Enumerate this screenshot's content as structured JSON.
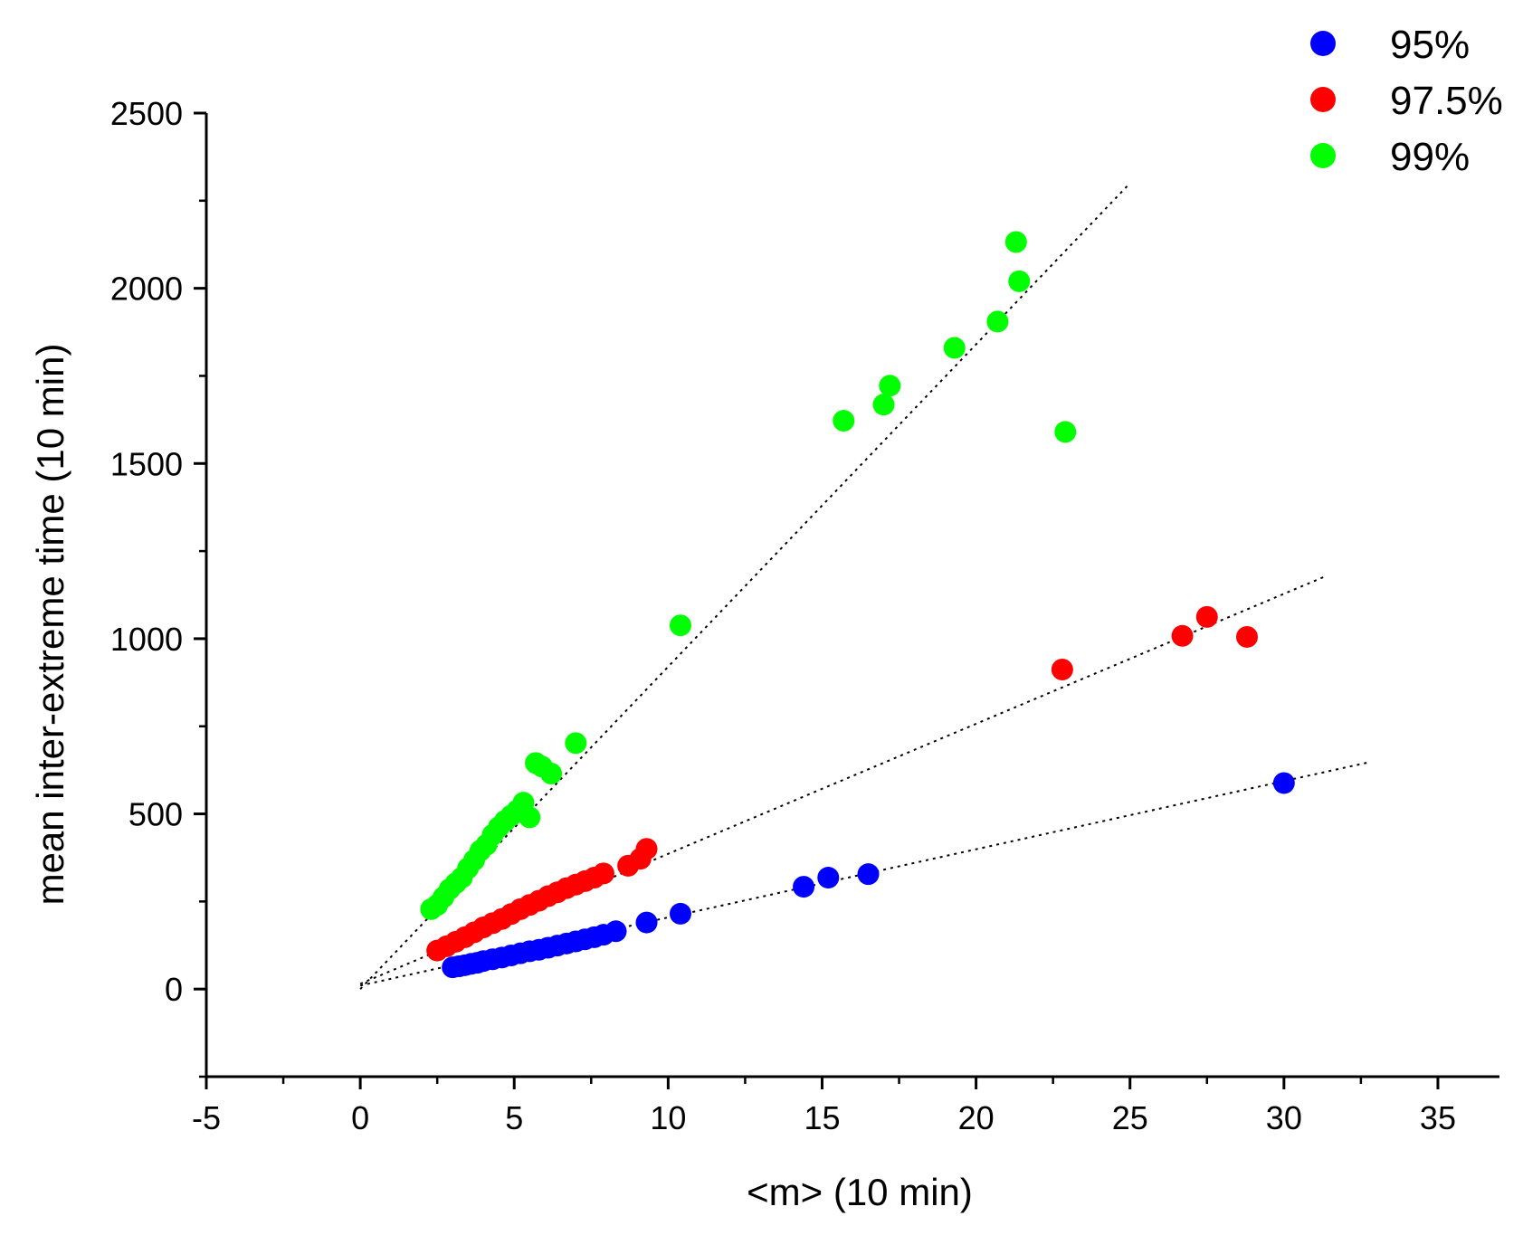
{
  "chart_data": {
    "type": "scatter",
    "title": "",
    "xlabel": "<m> (10 min)",
    "ylabel": "mean inter-extreme time (10 min)",
    "xlim": [
      -5,
      37
    ],
    "ylim": [
      -250,
      2500
    ],
    "x_ticks": [
      -5,
      0,
      5,
      10,
      15,
      20,
      25,
      30,
      35
    ],
    "y_ticks": [
      0,
      500,
      1000,
      1500,
      2000,
      2500
    ],
    "grid": false,
    "legend_position": "top-right",
    "series": [
      {
        "name": "95%",
        "color": "#0000ff",
        "points": [
          [
            3.0,
            62
          ],
          [
            3.2,
            65
          ],
          [
            3.4,
            68
          ],
          [
            3.6,
            72
          ],
          [
            3.8,
            75
          ],
          [
            4.0,
            80
          ],
          [
            4.3,
            85
          ],
          [
            4.6,
            90
          ],
          [
            4.9,
            96
          ],
          [
            5.2,
            102
          ],
          [
            5.5,
            108
          ],
          [
            5.8,
            112
          ],
          [
            6.1,
            118
          ],
          [
            6.4,
            124
          ],
          [
            6.7,
            130
          ],
          [
            7.0,
            136
          ],
          [
            7.3,
            142
          ],
          [
            7.6,
            148
          ],
          [
            7.9,
            155
          ],
          [
            8.3,
            165
          ],
          [
            9.3,
            190
          ],
          [
            10.4,
            215
          ],
          [
            14.4,
            292
          ],
          [
            15.2,
            318
          ],
          [
            16.5,
            328
          ],
          [
            30.0,
            588
          ]
        ],
        "fit": {
          "x": [
            0,
            32.8
          ],
          "y": [
            10,
            648
          ]
        }
      },
      {
        "name": "97.5%",
        "color": "#ff0000",
        "points": [
          [
            2.5,
            110
          ],
          [
            2.8,
            122
          ],
          [
            3.1,
            135
          ],
          [
            3.4,
            148
          ],
          [
            3.7,
            162
          ],
          [
            4.0,
            176
          ],
          [
            4.3,
            188
          ],
          [
            4.6,
            200
          ],
          [
            4.9,
            214
          ],
          [
            5.2,
            228
          ],
          [
            5.5,
            240
          ],
          [
            5.8,
            252
          ],
          [
            6.1,
            265
          ],
          [
            6.4,
            276
          ],
          [
            6.7,
            288
          ],
          [
            7.0,
            298
          ],
          [
            7.3,
            308
          ],
          [
            7.6,
            318
          ],
          [
            7.9,
            330
          ],
          [
            8.7,
            352
          ],
          [
            9.1,
            372
          ],
          [
            9.3,
            400
          ],
          [
            22.8,
            912
          ],
          [
            26.7,
            1008
          ],
          [
            27.5,
            1062
          ],
          [
            28.8,
            1005
          ]
        ],
        "fit": {
          "x": [
            0,
            31.4
          ],
          "y": [
            15,
            1180
          ]
        }
      },
      {
        "name": "99%",
        "color": "#00ff00",
        "points": [
          [
            2.3,
            228
          ],
          [
            2.5,
            240
          ],
          [
            2.7,
            262
          ],
          [
            2.9,
            285
          ],
          [
            3.1,
            302
          ],
          [
            3.3,
            318
          ],
          [
            3.5,
            345
          ],
          [
            3.7,
            368
          ],
          [
            3.9,
            395
          ],
          [
            4.1,
            412
          ],
          [
            4.3,
            440
          ],
          [
            4.5,
            462
          ],
          [
            4.7,
            480
          ],
          [
            4.9,
            495
          ],
          [
            5.1,
            510
          ],
          [
            5.3,
            532
          ],
          [
            5.5,
            490
          ],
          [
            5.7,
            645
          ],
          [
            5.9,
            635
          ],
          [
            6.2,
            615
          ],
          [
            7.0,
            702
          ],
          [
            10.4,
            1038
          ],
          [
            15.7,
            1622
          ],
          [
            17.0,
            1668
          ],
          [
            17.2,
            1722
          ],
          [
            19.3,
            1830
          ],
          [
            20.7,
            1905
          ],
          [
            21.3,
            2132
          ],
          [
            21.4,
            2020
          ],
          [
            22.9,
            1590
          ]
        ],
        "fit": {
          "x": [
            0,
            25
          ],
          "y": [
            0,
            2300
          ]
        }
      }
    ]
  }
}
